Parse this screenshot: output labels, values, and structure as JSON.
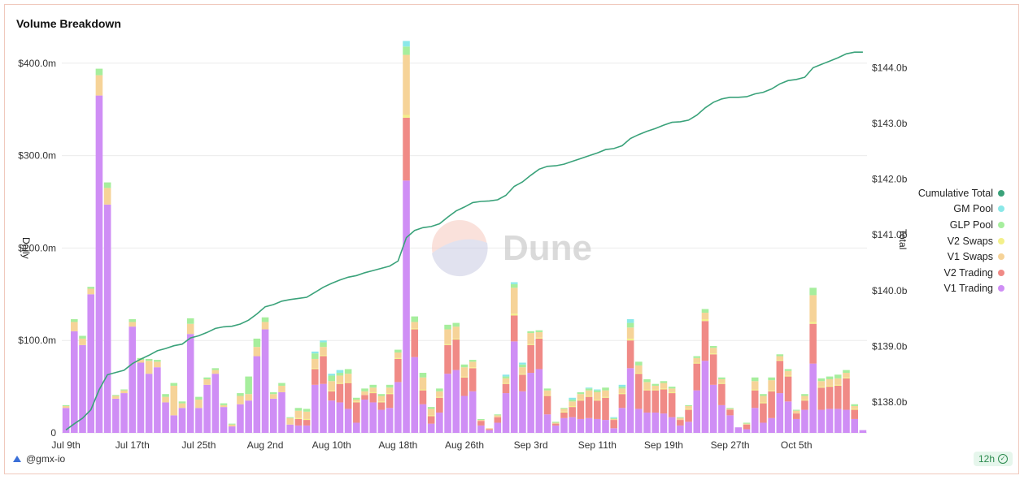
{
  "title": "Volume Breakdown",
  "footer": {
    "author": "@gmx-io",
    "refresh": "12h"
  },
  "watermark": "Dune",
  "chart_data": {
    "type": "bar",
    "stacked": true,
    "ylabel": "Daily",
    "y2label": "Total",
    "ylim": [
      0,
      420
    ],
    "y2lim": [
      137.5,
      144.5
    ],
    "y_ticks": [
      "0",
      "$100.0m",
      "$200.0m",
      "$300.0m",
      "$400.0m"
    ],
    "y2_ticks": [
      "$138.0b",
      "$139.0b",
      "$140.0b",
      "$141.0b",
      "$142.0b",
      "$143.0b",
      "$144.0b"
    ],
    "x_ticks": [
      "Jul 9th",
      "Jul 17th",
      "Jul 25th",
      "Aug 2nd",
      "Aug 10th",
      "Aug 18th",
      "Aug 26th",
      "Sep 3rd",
      "Sep 11th",
      "Sep 19th",
      "Sep 27th",
      "Oct 5th"
    ],
    "legend_position": "right",
    "grid": true,
    "colors": {
      "Cumulative Total": "#3aa27a",
      "GM Pool": "#8be8e8",
      "GLP Pool": "#a6ee9d",
      "V2 Swaps": "#f3f08a",
      "V1 Swaps": "#f6d398",
      "V2 Trading": "#f08a86",
      "V1 Trading": "#cf8ef5"
    },
    "series": [
      {
        "name": "V1 Trading",
        "values": [
          27,
          110,
          95,
          150,
          365,
          247,
          37,
          43,
          115,
          76,
          64,
          71,
          33,
          19,
          27,
          107,
          27,
          52,
          64,
          28,
          7,
          31,
          35,
          83,
          112,
          37,
          44,
          9,
          8,
          8,
          52,
          53,
          35,
          33,
          26,
          11,
          36,
          33,
          25,
          27,
          55,
          273,
          82,
          31,
          10,
          22,
          64,
          68,
          40,
          45,
          8,
          3,
          11,
          43,
          99,
          45,
          65,
          69,
          20,
          8,
          16,
          17,
          15,
          16,
          15,
          14,
          5,
          27,
          70,
          26,
          22,
          22,
          21,
          17,
          8,
          12,
          46,
          78,
          52,
          30,
          19,
          6,
          4,
          27,
          11,
          16,
          43,
          34,
          15,
          25,
          75,
          25,
          26,
          26,
          25,
          15,
          3
        ]
      },
      {
        "name": "V2 Trading",
        "values": [
          0,
          0,
          0,
          0,
          0,
          0,
          0,
          0,
          0,
          0,
          0,
          0,
          0,
          0,
          0,
          0,
          0,
          0,
          0,
          0,
          0,
          0,
          0,
          0,
          0,
          0,
          0,
          0,
          7,
          6,
          17,
          30,
          10,
          20,
          28,
          22,
          5,
          10,
          8,
          15,
          25,
          68,
          30,
          15,
          8,
          16,
          31,
          33,
          20,
          25,
          5,
          1,
          6,
          10,
          28,
          18,
          30,
          33,
          20,
          2,
          6,
          11,
          20,
          23,
          20,
          24,
          9,
          15,
          30,
          38,
          24,
          24,
          26,
          26,
          6,
          13,
          29,
          43,
          33,
          23,
          6,
          0,
          5,
          19,
          21,
          29,
          35,
          27,
          6,
          10,
          43,
          24,
          24,
          25,
          34,
          10,
          0
        ]
      },
      {
        "name": "V2 Swaps",
        "values": [
          0,
          0,
          0,
          0,
          0,
          0,
          0,
          0,
          0,
          0,
          0,
          0,
          0,
          0,
          0,
          0,
          0,
          0,
          0,
          0,
          0,
          0,
          0,
          0,
          0,
          0,
          0,
          0,
          1,
          1,
          1,
          1,
          1,
          1,
          1,
          1,
          0,
          1,
          1,
          1,
          1,
          3,
          1,
          1,
          1,
          1,
          1,
          1,
          1,
          1,
          0,
          0,
          0,
          1,
          2,
          1,
          1,
          1,
          1,
          0,
          1,
          1,
          1,
          1,
          1,
          1,
          0,
          1,
          2,
          1,
          1,
          1,
          1,
          1,
          0,
          1,
          1,
          2,
          1,
          1,
          0,
          0,
          0,
          1,
          1,
          1,
          1,
          1,
          0,
          1,
          2,
          1,
          1,
          1,
          1,
          1,
          0
        ]
      },
      {
        "name": "V1 Swaps",
        "values": [
          2,
          10,
          7,
          6,
          22,
          18,
          3,
          3,
          5,
          3,
          14,
          6,
          6,
          32,
          5,
          11,
          9,
          6,
          4,
          2,
          2,
          9,
          7,
          10,
          8,
          5,
          7,
          7,
          8,
          8,
          10,
          9,
          10,
          8,
          9,
          2,
          4,
          5,
          6,
          6,
          6,
          65,
          7,
          13,
          7,
          6,
          16,
          13,
          10,
          6,
          1,
          1,
          2,
          5,
          28,
          7,
          12,
          6,
          5,
          1,
          3,
          5,
          6,
          6,
          8,
          7,
          1,
          5,
          12,
          8,
          8,
          4,
          6,
          4,
          2,
          3,
          5,
          7,
          6,
          4,
          1,
          0,
          1,
          9,
          7,
          11,
          4,
          5,
          3,
          4,
          29,
          6,
          7,
          7,
          5,
          3,
          0
        ]
      },
      {
        "name": "GLP Pool",
        "values": [
          1,
          3,
          3,
          2,
          7,
          6,
          1,
          1,
          3,
          2,
          2,
          2,
          3,
          3,
          2,
          6,
          3,
          2,
          2,
          2,
          1,
          3,
          19,
          9,
          5,
          2,
          3,
          1,
          3,
          3,
          6,
          5,
          6,
          3,
          5,
          2,
          3,
          3,
          2,
          3,
          3,
          9,
          6,
          5,
          2,
          3,
          5,
          4,
          3,
          2,
          1,
          0,
          1,
          2,
          4,
          3,
          2,
          2,
          2,
          1,
          1,
          2,
          2,
          2,
          2,
          3,
          1,
          2,
          5,
          4,
          3,
          2,
          2,
          2,
          1,
          1,
          2,
          4,
          2,
          2,
          1,
          0,
          1,
          4,
          2,
          3,
          2,
          2,
          1,
          2,
          8,
          3,
          3,
          4,
          3,
          2,
          0
        ]
      },
      {
        "name": "GM Pool",
        "values": [
          0,
          0,
          0,
          0,
          0,
          0,
          0,
          0,
          0,
          0,
          0,
          0,
          0,
          0,
          0,
          0,
          0,
          0,
          0,
          0,
          0,
          0,
          0,
          0,
          0,
          0,
          0,
          0,
          0,
          0,
          2,
          2,
          2,
          3,
          0,
          0,
          0,
          0,
          0,
          0,
          0,
          6,
          0,
          0,
          0,
          0,
          0,
          0,
          0,
          0,
          0,
          0,
          0,
          2,
          2,
          2,
          0,
          0,
          0,
          0,
          0,
          2,
          0,
          1,
          1,
          0,
          1,
          2,
          4,
          0,
          0,
          0,
          0,
          0,
          0,
          0,
          0,
          0,
          0,
          0,
          0,
          0,
          0,
          0,
          0,
          0,
          0,
          0,
          0,
          0,
          0,
          0,
          0,
          0,
          0,
          0,
          0
        ]
      },
      {
        "name": "Cumulative Total",
        "axis": "right",
        "values": [
          137.5,
          137.61,
          137.71,
          137.86,
          138.22,
          138.49,
          138.53,
          138.57,
          138.69,
          138.77,
          138.84,
          138.92,
          138.96,
          139.01,
          139.04,
          139.15,
          139.19,
          139.25,
          139.32,
          139.35,
          139.36,
          139.4,
          139.47,
          139.58,
          139.71,
          139.75,
          139.81,
          139.84,
          139.86,
          139.88,
          139.97,
          140.06,
          140.13,
          140.19,
          140.24,
          140.27,
          140.32,
          140.36,
          140.4,
          140.44,
          140.53,
          140.95,
          141.08,
          141.13,
          141.15,
          141.2,
          141.32,
          141.43,
          141.5,
          141.58,
          141.6,
          141.61,
          141.63,
          141.71,
          141.87,
          141.95,
          142.07,
          142.18,
          142.23,
          142.24,
          142.27,
          142.32,
          142.37,
          142.42,
          142.47,
          142.53,
          142.55,
          142.6,
          142.73,
          142.8,
          142.86,
          142.91,
          142.97,
          143.02,
          143.03,
          143.06,
          143.15,
          143.28,
          143.38,
          143.44,
          143.47,
          143.47,
          143.48,
          143.53,
          143.56,
          143.62,
          143.71,
          143.77,
          143.79,
          143.83,
          144.0,
          144.06,
          144.12,
          144.18,
          144.25,
          144.28,
          144.28
        ]
      }
    ]
  }
}
